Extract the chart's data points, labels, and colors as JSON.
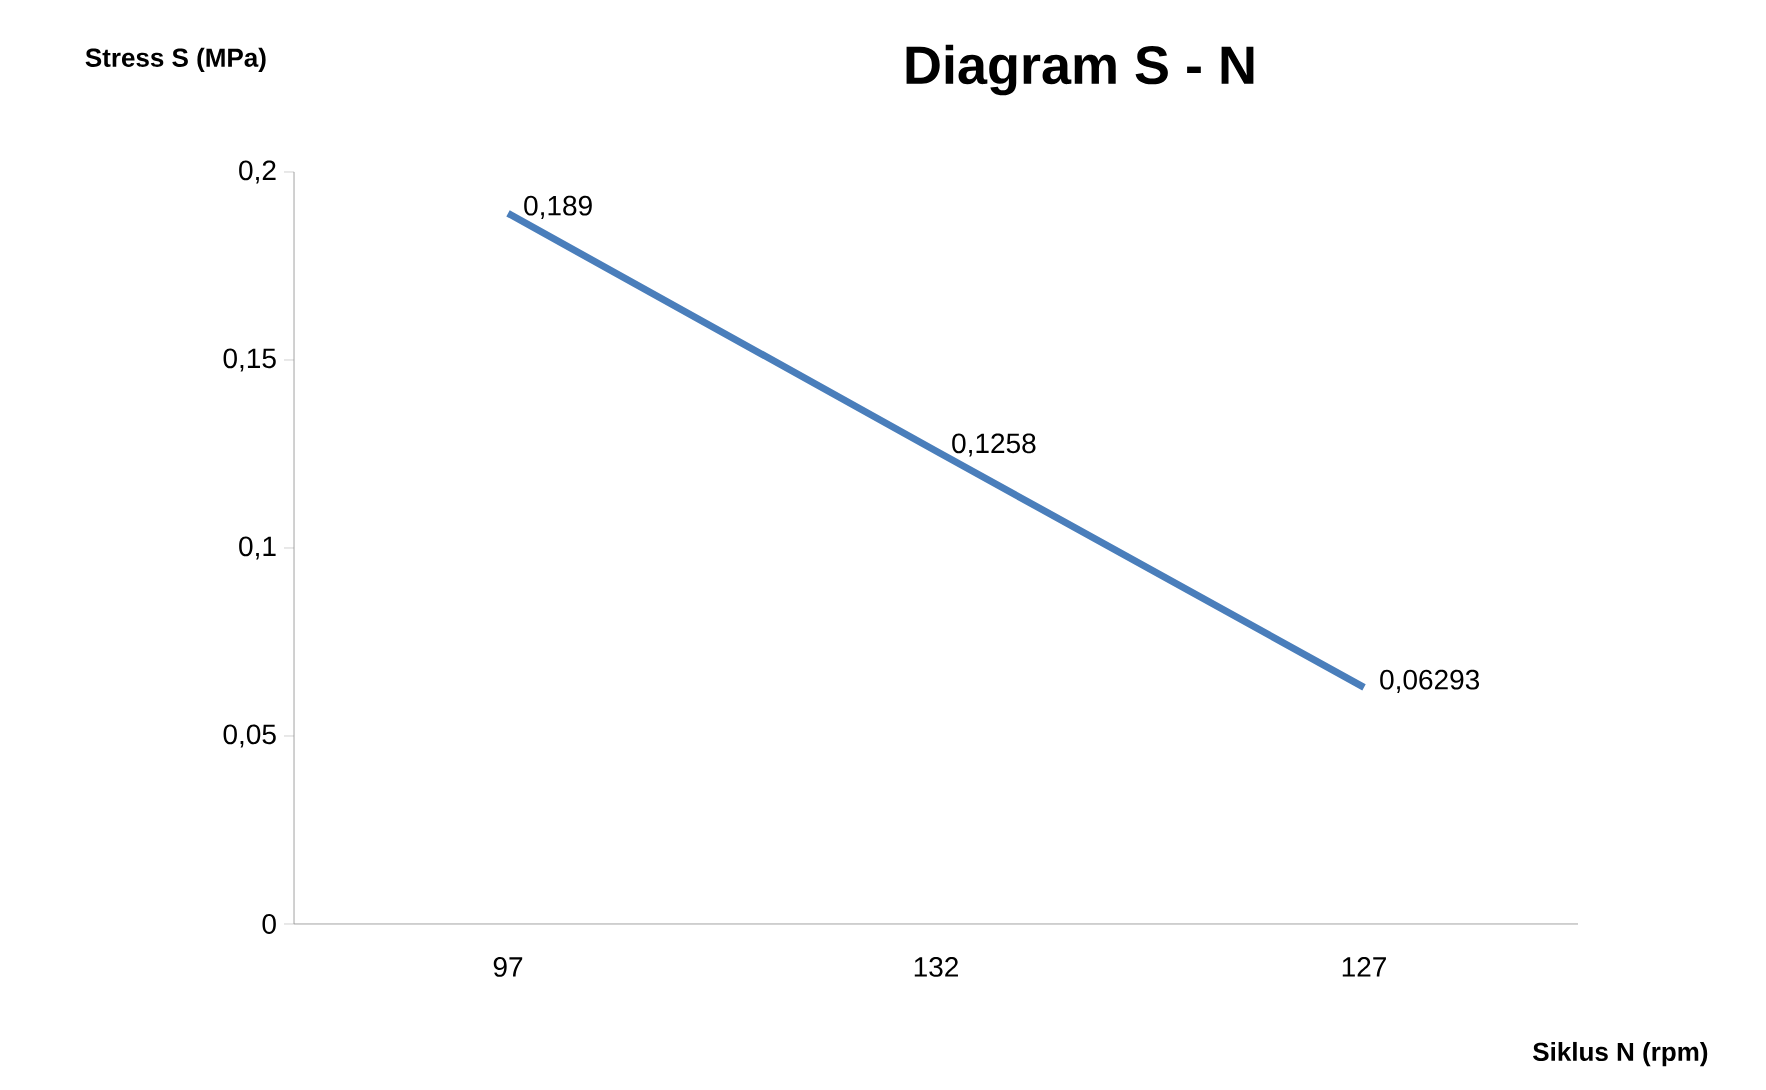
{
  "chart_data": {
    "type": "line",
    "title": "Diagram S - N",
    "xlabel": "Siklus N (rpm)",
    "ylabel": "Stress S (MPa)",
    "categories": [
      "97",
      "132",
      "127"
    ],
    "series": [
      {
        "color": "#4a7ebb",
        "values": [
          0.189,
          0.1258,
          0.06293
        ],
        "value_labels": [
          "0,189",
          "0,1258",
          "0,06293"
        ]
      }
    ],
    "ylim": [
      0,
      0.2
    ],
    "yticks": [
      {
        "value": 0,
        "label": "0"
      },
      {
        "value": 0.05,
        "label": "0,05"
      },
      {
        "value": 0.1,
        "label": "0,1"
      },
      {
        "value": 0.15,
        "label": "0,15"
      },
      {
        "value": 0.2,
        "label": "0,2"
      }
    ],
    "grid": false,
    "marker": "none",
    "line_style": "solid"
  }
}
